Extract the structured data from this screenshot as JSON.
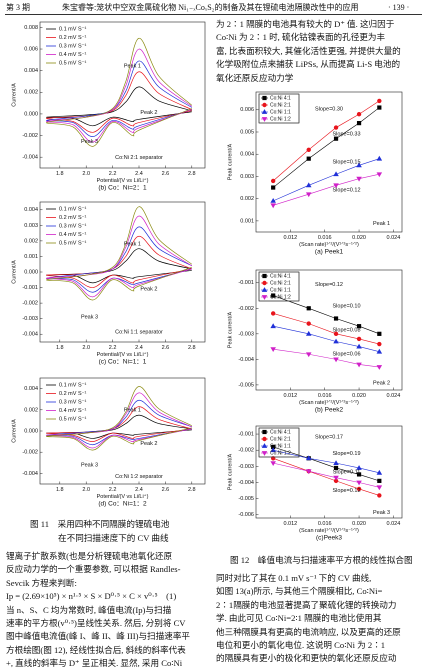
{
  "header": {
    "issue": "第 3 期",
    "title": "朱宝睿等:笼状中空双金属硫化物 Ni₁₋ₓCoₓS₂的制备及其在锂硫电池隔膜改性中的应用",
    "page": "· 139 ·"
  },
  "right_top_text": [
    "为 2∶1 隔膜的电池具有较大的 D⁺ 值. 这归因于",
    "Co∶Ni 为 2∶1 时, 硫化钴镍表面的孔径更为丰",
    "富, 比表面积较大, 其催化活性更强, 并提供大量的",
    "化学吸附位点来捕获 LiPSs, 从而提高 Li-S 电池的",
    "氧化还原反应动力学"
  ],
  "fig11_caption": [
    "图 11　采用四种不同隔膜的锂硫电池",
    "在不同扫描速度下的 CV 曲线"
  ],
  "fig12_caption": "图 12　峰值电流与扫描速率平方根的线性拟合图",
  "left_text": [
    "锂离子扩散系数(也是分析锂硫电池氧化还原",
    "反应动力学的一个重要参数, 可以根据 Randles-",
    "Sevcik 方程来判断:",
    "Ip = (2.69×10⁵) × n¹·⁵ × S × D⁰·⁵ × C × v⁰·⁵　(1)",
    "当 n、S、C 均为常数时, 峰值电流(Ip)与扫描",
    "速率的平方根(v⁰·⁵)呈线性关系. 然后, 分别将 CV",
    "图中峰值电流值(峰 I、峰 II、峰 III)与扫描速率平",
    "方根绘图(图 12), 经线性拟合后, 斜线的斜率代表",
    "+, 直线的斜率与 D⁺ 呈正相关. 显然, 采用 Co∶Ni"
  ],
  "right_bottom_text": [
    "同时对比了其在 0.1 mV s⁻¹ 下的 CV 曲线,",
    "如图 13(a)所示, 与其他三个隔膜相比, Co∶Ni=",
    "2∶1隔膜的电池显著提高了聚硫化锂的转换动力",
    "学. 由此可见 Co∶Ni=2∶1 隔膜的电池比使用其",
    "他三种隔膜具有更高的电流响应, 以及更高的还原",
    "电位和更小的氧化电位. 这说明 Co∶Ni 为 2∶1",
    "的隔膜具有更小的极化和更快的氧化还原反应动"
  ],
  "chart_data": [
    {
      "type": "line",
      "caption": "(b) Co：Ni=2：1",
      "x_label": "Potential/(V vs Li/Li⁺)",
      "y_label": "Current/A",
      "x": [
        2.8,
        2.4,
        2.35,
        2.2,
        2.05,
        1.9,
        1.7,
        2.0,
        2.2,
        2.3,
        2.4,
        2.55,
        2.8
      ],
      "xlim": [
        1.65,
        2.9
      ],
      "xticks": [
        1.8,
        {
          "value": 2,
          "label": "2.0"
        },
        2.2,
        2.4,
        2.6,
        2.8
      ],
      "ylim": [
        -0.005,
        0.0085
      ],
      "yticks": [
        -0.004,
        -0.002,
        {
          "value": 0,
          "label": "0.000"
        },
        0.002,
        0.004,
        0.006,
        0.008
      ],
      "series": [
        {
          "name": "0.1 mV S⁻¹",
          "color": "#000000",
          "values": [
            0.0002,
            -0.0005,
            -0.0007,
            -0.0003,
            -0.0011,
            -0.0004,
            -0.0003,
            -0.0001,
            0.0002,
            0.0011,
            0.0025,
            0.0012,
            0.0003
          ]
        },
        {
          "name": "0.2 mV S⁻¹",
          "color": "#e8141c",
          "values": [
            0.0003,
            -0.0008,
            -0.0011,
            -0.0004,
            -0.0017,
            -0.0007,
            -0.0004,
            -0.0002,
            0.0003,
            0.0017,
            0.0039,
            0.0019,
            0.0004
          ]
        },
        {
          "name": "0.3 mV S⁻¹",
          "color": "#2030d8",
          "values": [
            0.0004,
            -0.0011,
            -0.0014,
            -0.0006,
            -0.0021,
            -0.0008,
            -0.0006,
            -0.0002,
            0.0004,
            0.0021,
            0.0049,
            0.0025,
            0.0006
          ]
        },
        {
          "name": "0.4 mV S⁻¹",
          "color": "#d020c8",
          "values": [
            0.0004,
            -0.0013,
            -0.0017,
            -0.0007,
            -0.0026,
            -0.001,
            -0.0007,
            -0.0003,
            0.0004,
            0.0026,
            0.006,
            0.003,
            0.0007
          ]
        },
        {
          "name": "0.5 mV S⁻¹",
          "color": "#8a8a10",
          "values": [
            0.0005,
            -0.0015,
            -0.002,
            -0.0008,
            -0.003,
            -0.0012,
            -0.0008,
            -0.0003,
            0.0005,
            0.003,
            0.007,
            0.0035,
            0.0008
          ]
        }
      ],
      "annotations": [
        "Peak 1",
        "Peak 2",
        "Peak 3",
        "Co:Ni 2:1  separator"
      ]
    },
    {
      "type": "line",
      "caption": "(c) Co：Ni=1：1",
      "x_label": "Potential/(V vs Li/Li⁺)",
      "y_label": "Current/A",
      "x": [
        2.8,
        2.4,
        2.35,
        2.2,
        2.05,
        1.9,
        1.7,
        2.0,
        2.2,
        2.3,
        2.4,
        2.55,
        2.8
      ],
      "xlim": [
        1.65,
        2.9
      ],
      "xticks": [
        1.8,
        {
          "value": 2,
          "label": "2.0"
        },
        2.2,
        2.4,
        2.6,
        2.8
      ],
      "ylim": [
        -0.0045,
        0.0045
      ],
      "yticks": [
        -0.004,
        -0.003,
        -0.002,
        -0.001,
        {
          "value": 0,
          "label": "0.000"
        },
        0.001,
        0.002,
        0.003,
        0.004
      ],
      "series": [
        {
          "name": "0.1 mV S⁻¹",
          "color": "#000000",
          "values": [
            0.0001,
            -0.0003,
            -0.0004,
            -0.0002,
            -0.0007,
            -0.0002,
            -0.0002,
            -0.0001,
            0.0001,
            0.0007,
            0.0015,
            0.0007,
            0.0002
          ]
        },
        {
          "name": "0.2 mV S⁻¹",
          "color": "#e8141c",
          "values": [
            0.0002,
            -0.0005,
            -0.0007,
            -0.0002,
            -0.001,
            -0.0004,
            -0.0002,
            -0.0001,
            0.0002,
            0.001,
            0.0023,
            0.0011,
            0.0002
          ]
        },
        {
          "name": "0.3 mV S⁻¹",
          "color": "#2030d8",
          "values": [
            0.0002,
            -0.0007,
            -0.0008,
            -0.0004,
            -0.0013,
            -0.0005,
            -0.0004,
            -0.0001,
            0.0002,
            0.0013,
            0.0029,
            0.0015,
            0.0004
          ]
        },
        {
          "name": "0.4 mV S⁻¹",
          "color": "#d020c8",
          "values": [
            0.0002,
            -0.0008,
            -0.001,
            -0.0004,
            -0.0016,
            -0.0006,
            -0.0004,
            -0.0002,
            0.0002,
            0.0016,
            0.0036,
            0.0018,
            0.0004
          ]
        },
        {
          "name": "0.5 mV S⁻¹",
          "color": "#8a8a10",
          "values": [
            0.0003,
            -0.0009,
            -0.0012,
            -0.0005,
            -0.0018,
            -0.0007,
            -0.0005,
            -0.0002,
            0.0003,
            0.0018,
            0.0042,
            0.0021,
            0.0005
          ]
        }
      ],
      "annotations": [
        "Peak 1",
        "Peak 2",
        "Peak 3",
        "Co:Ni 1:1  separator"
      ]
    },
    {
      "type": "line",
      "caption": "(d) Co：Ni=1：2",
      "x_label": "Potential/(V vs Li/Li⁺)",
      "y_label": "Current/A",
      "x": [
        2.8,
        2.4,
        2.35,
        2.2,
        2.05,
        1.9,
        1.7,
        2.0,
        2.2,
        2.3,
        2.4,
        2.55,
        2.8
      ],
      "xlim": [
        1.65,
        2.9
      ],
      "xticks": [
        1.8,
        {
          "value": 2,
          "label": "2.0"
        },
        2.2,
        2.4,
        2.6,
        2.8
      ],
      "ylim": [
        -0.005,
        0.005
      ],
      "yticks": [
        -0.004,
        -0.002,
        {
          "value": 0,
          "label": "0.000"
        },
        0.002,
        0.004
      ],
      "series": [
        {
          "name": "0.1 mV S⁻¹",
          "color": "#000000",
          "values": [
            0.0001,
            -0.0003,
            -0.0004,
            -0.0002,
            -0.0007,
            -0.0002,
            -0.0002,
            -0.0001,
            0.0001,
            0.0007,
            0.0015,
            0.0007,
            0.0002
          ]
        },
        {
          "name": "0.2 mV S⁻¹",
          "color": "#e8141c",
          "values": [
            0.0002,
            -0.0005,
            -0.0007,
            -0.0002,
            -0.001,
            -0.0004,
            -0.0002,
            -0.0001,
            0.0002,
            0.001,
            0.0023,
            0.0011,
            0.0002
          ]
        },
        {
          "name": "0.3 mV S⁻¹",
          "color": "#2030d8",
          "values": [
            0.0002,
            -0.0007,
            -0.0008,
            -0.0004,
            -0.0013,
            -0.0005,
            -0.0004,
            -0.0001,
            0.0002,
            0.0013,
            0.0029,
            0.0015,
            0.0004
          ]
        },
        {
          "name": "0.4 mV S⁻¹",
          "color": "#d020c8",
          "values": [
            0.0002,
            -0.0008,
            -0.001,
            -0.0004,
            -0.0016,
            -0.0006,
            -0.0004,
            -0.0002,
            0.0002,
            0.0016,
            0.0036,
            0.0018,
            0.0004
          ]
        },
        {
          "name": "0.5 mV S⁻¹",
          "color": "#8a8a10",
          "values": [
            0.0003,
            -0.0009,
            -0.0012,
            -0.0005,
            -0.0018,
            -0.0007,
            -0.0005,
            -0.0002,
            0.0003,
            0.0018,
            0.0042,
            0.0021,
            0.0005
          ]
        }
      ],
      "annotations": [
        "Peak 1",
        "Peak 2",
        "Peak 3",
        "Co:Ni 1:2  separator"
      ]
    },
    {
      "type": "scatter",
      "caption": "(a) Peek1",
      "x_label": "(Scan rate)¹ᐟ²/(V¹ᐟ²s⁻¹ᐟ²)",
      "y_label": "Peak current/A",
      "x": [
        0.01,
        0.01414,
        0.01732,
        0.02,
        0.02236
      ],
      "xlim": [
        0.008,
        0.025
      ],
      "xticks": [
        0.012,
        0.016,
        {
          "value": 0.02,
          "label": "0.020"
        },
        0.024
      ],
      "ylim": [
        0.0005,
        0.0068
      ],
      "yticks": [
        0.001,
        0.002,
        0.003,
        0.004,
        0.005,
        0.006
      ],
      "series": [
        {
          "name": "Co:Ni 4:1",
          "color": "#000000",
          "values": [
            0.0025,
            0.0038,
            0.0047,
            0.0054,
            0.0061
          ]
        },
        {
          "name": "Co:Ni 2:1",
          "color": "#e8141c",
          "values": [
            0.0028,
            0.0042,
            0.0052,
            0.0058,
            0.0064
          ]
        },
        {
          "name": "Co:Ni 1:1",
          "color": "#2030d8",
          "values": [
            0.0019,
            0.0026,
            0.0031,
            0.0035,
            0.0038
          ]
        },
        {
          "name": "Co:Ni 1:2",
          "color": "#d020c8",
          "values": [
            0.0017,
            0.0022,
            0.0026,
            0.0029,
            0.0031
          ]
        }
      ],
      "annotations": [
        "Slope=0.30",
        "Slope=0.33",
        "Slope=0.15",
        "Slope=0.12",
        "Peak 1"
      ]
    },
    {
      "type": "scatter",
      "caption": "(b) Peek2",
      "x_label": "(Scan rate)¹ᐟ²/(V¹ᐟ²s⁻¹ᐟ²)",
      "y_label": "Peak current/A",
      "x": [
        0.01,
        0.01414,
        0.01732,
        0.02,
        0.02236
      ],
      "xlim": [
        0.008,
        0.025
      ],
      "xticks": [
        0.012,
        0.016,
        {
          "value": 0.02,
          "label": "0.020"
        },
        0.024
      ],
      "ylim": [
        -0.0052,
        -0.0005
      ],
      "yticks": [
        -0.005,
        -0.004,
        -0.003,
        -0.002,
        -0.001
      ],
      "series": [
        {
          "name": "Co:Ni 4:1",
          "color": "#000000",
          "values": [
            -0.0015,
            -0.002,
            -0.0024,
            -0.0027,
            -0.003
          ]
        },
        {
          "name": "Co:Ni 2:1",
          "color": "#e8141c",
          "values": [
            -0.0022,
            -0.0026,
            -0.003,
            -0.0032,
            -0.0034
          ]
        },
        {
          "name": "Co:Ni 1:1",
          "color": "#2030d8",
          "values": [
            -0.0027,
            -0.003,
            -0.0033,
            -0.0035,
            -0.0037
          ]
        },
        {
          "name": "Co:Ni 1:2",
          "color": "#d020c8",
          "values": [
            -0.0036,
            -0.0038,
            -0.004,
            -0.0042,
            -0.0043
          ]
        }
      ],
      "annotations": [
        "Slope=0.12",
        "Slope=0.10",
        "Slope=0.08",
        "Slope=0.06",
        "Peak 2"
      ]
    },
    {
      "type": "scatter",
      "caption": "(c)Peek3",
      "x_label": "(Scan rate)¹ᐟ²/(V¹ᐟ²s⁻¹ᐟ²)",
      "y_label": "Peak current/A",
      "x": [
        0.01,
        0.01414,
        0.01732,
        0.02,
        0.02236
      ],
      "xlim": [
        0.008,
        0.025
      ],
      "xticks": [
        0.012,
        0.016,
        {
          "value": 0.02,
          "label": "0.020"
        },
        0.024
      ],
      "ylim": [
        -0.0062,
        -0.0005
      ],
      "yticks": [
        -0.006,
        -0.005,
        -0.004,
        -0.003,
        -0.002,
        -0.001
      ],
      "series": [
        {
          "name": "Co:Ni 4:1",
          "color": "#000000",
          "values": [
            -0.0018,
            -0.0025,
            -0.0031,
            -0.0035,
            -0.0039
          ]
        },
        {
          "name": "Co:Ni 2:1",
          "color": "#e8141c",
          "values": [
            -0.0025,
            -0.0033,
            -0.0039,
            -0.0044,
            -0.0048
          ]
        },
        {
          "name": "Co:Ni 1:1",
          "color": "#2030d8",
          "values": [
            -0.002,
            -0.0025,
            -0.0028,
            -0.0031,
            -0.0034
          ]
        },
        {
          "name": "Co:Ni 1:2",
          "color": "#d020c8",
          "values": [
            -0.0028,
            -0.0033,
            -0.0037,
            -0.004,
            -0.0043
          ]
        }
      ],
      "annotations": [
        "Slope=0.17",
        "Slope=0.19",
        "Slope=0.11",
        "Slope=0.12",
        "Peak 3"
      ]
    }
  ]
}
